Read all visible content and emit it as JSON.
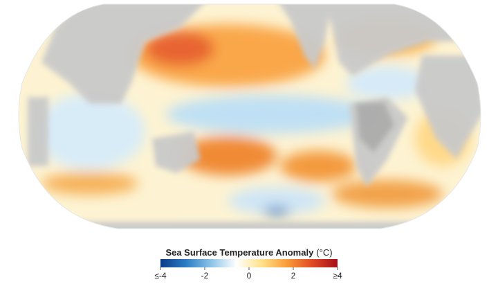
{
  "legend": {
    "title": "Sea Surface Temperature Anomaly",
    "unit": "(°C)",
    "range": [
      -4,
      4
    ],
    "ticks": [
      {
        "value": -4,
        "label": "≤-4"
      },
      -2,
      0,
      2,
      {
        "value": 4,
        "label": "≥4"
      }
    ],
    "colors": [
      "#0b3a86",
      "#2a7cc4",
      "#8cc3e6",
      "#ffffff",
      "#ffe28a",
      "#f99b38",
      "#e04a24",
      "#a50f1a"
    ]
  }
}
